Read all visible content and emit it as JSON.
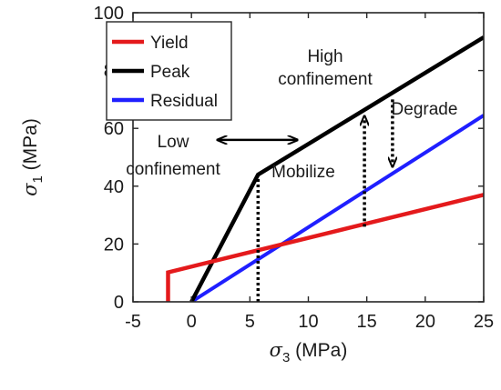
{
  "chart_data": {
    "type": "line",
    "title": "",
    "xlabel": {
      "symbol": "σ",
      "sub": "3",
      "unit": " (MPa)"
    },
    "ylabel": {
      "symbol": "σ",
      "sub": "1",
      "unit": " (MPa)"
    },
    "xlim": [
      -5,
      25
    ],
    "ylim": [
      0,
      100
    ],
    "xticks": [
      -5,
      0,
      5,
      10,
      15,
      20,
      25
    ],
    "yticks": [
      0,
      20,
      40,
      60,
      80,
      100
    ],
    "grid": false,
    "legend_position": "top-left",
    "series": [
      {
        "name": "Yield",
        "color": "#e41a1c",
        "x": [
          -2,
          -2,
          25
        ],
        "y": [
          0,
          10.2,
          37
        ]
      },
      {
        "name": "Peak",
        "color": "#000000",
        "x": [
          0,
          5.7,
          25
        ],
        "y": [
          0,
          44,
          91.5
        ]
      },
      {
        "name": "Residual",
        "color": "#1f1fff",
        "x": [
          0,
          25
        ],
        "y": [
          0,
          64.5
        ]
      }
    ],
    "annotations": {
      "texts": [
        {
          "id": "high",
          "lines": [
            "High",
            "confinement"
          ]
        },
        {
          "id": "low",
          "lines": [
            "Low",
            "confinement"
          ]
        },
        {
          "id": "mobilize",
          "lines": [
            "Mobilize"
          ]
        },
        {
          "id": "degrade",
          "lines": [
            "Degrade"
          ]
        }
      ],
      "dotted_lines": [
        {
          "x1": 5.7,
          "y1": 0,
          "x2": 5.7,
          "y2": 44
        },
        {
          "x1": 14.8,
          "y1": 26,
          "x2": 14.8,
          "y2": 64
        },
        {
          "x1": 17.2,
          "y1": 70,
          "x2": 17.2,
          "y2": 47
        }
      ],
      "double_arrow": {
        "x1": 2.3,
        "x2": 9,
        "y": 56
      }
    }
  }
}
